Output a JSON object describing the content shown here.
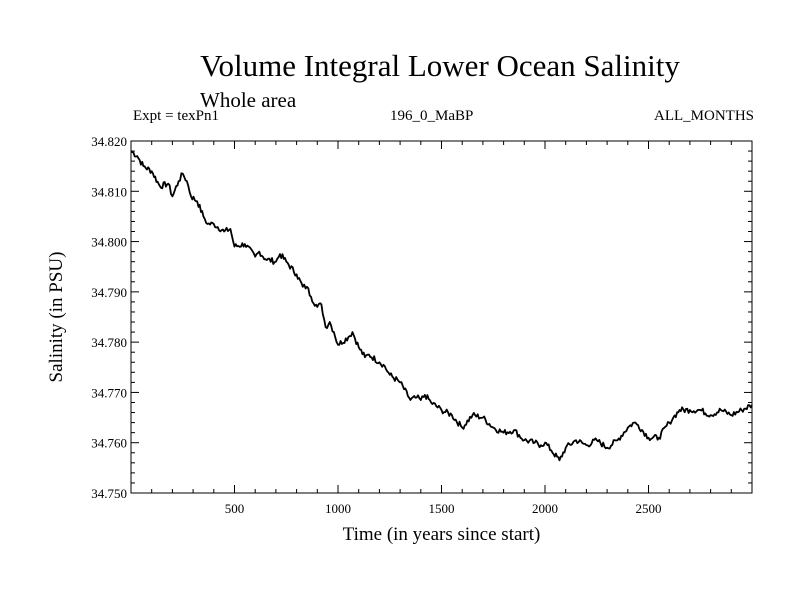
{
  "header": {
    "title": "Volume Integral Lower Ocean Salinity",
    "subtitle": "Whole area",
    "left": "Expt = texPn1",
    "center": "196_0_MaBP",
    "right": "ALL_MONTHS"
  },
  "chart_data": {
    "type": "line",
    "title": "Volume Integral Lower Ocean Salinity",
    "subtitle": "Whole area",
    "xlabel": "Time (in years since start)",
    "ylabel": "Salinity (in PSU)",
    "xlim": [
      0,
      3000
    ],
    "ylim": [
      34.75,
      34.82
    ],
    "xticks": [
      500,
      1000,
      1500,
      2000,
      2500
    ],
    "xtick_labels": [
      "500",
      "1000",
      "1500",
      "2000",
      "2500"
    ],
    "yticks": [
      34.75,
      34.76,
      34.77,
      34.78,
      34.79,
      34.8,
      34.81,
      34.82
    ],
    "ytick_labels": [
      "34.750",
      "34.760",
      "34.770",
      "34.780",
      "34.790",
      "34.800",
      "34.810",
      "34.820"
    ],
    "grid": false,
    "line_color": "#000000",
    "series": [
      {
        "x": [
          0,
          30,
          60,
          100,
          140,
          180,
          200,
          230,
          250,
          270,
          290,
          320,
          350,
          370,
          400,
          450,
          480,
          500,
          550,
          600,
          620,
          650,
          700,
          720,
          750,
          800,
          830,
          850,
          870,
          900,
          920,
          940,
          960,
          980,
          1000,
          1050,
          1070,
          1100,
          1130,
          1150,
          1200,
          1220,
          1250,
          1300,
          1350,
          1380,
          1400,
          1420,
          1450,
          1500,
          1550,
          1600,
          1650,
          1700,
          1750,
          1800,
          1850,
          1900,
          1950,
          1980,
          2000,
          2030,
          2070,
          2100,
          2150,
          2200,
          2250,
          2300,
          2350,
          2400,
          2430,
          2450,
          2500,
          2550,
          2600,
          2620,
          2650,
          2700,
          2750,
          2800,
          2850,
          2900,
          2950,
          3000
        ],
        "y": [
          34.818,
          34.817,
          34.815,
          34.814,
          34.811,
          34.8115,
          34.809,
          34.812,
          34.8135,
          34.812,
          34.809,
          34.808,
          34.805,
          34.8035,
          34.8035,
          34.802,
          34.8025,
          34.799,
          34.7995,
          34.797,
          34.798,
          34.7965,
          34.796,
          34.7975,
          34.796,
          34.7935,
          34.791,
          34.791,
          34.789,
          34.787,
          34.7875,
          34.783,
          34.784,
          34.782,
          34.7795,
          34.781,
          34.782,
          34.779,
          34.777,
          34.7775,
          34.776,
          34.7755,
          34.7735,
          34.772,
          34.7685,
          34.769,
          34.7685,
          34.7695,
          34.768,
          34.7665,
          34.7655,
          34.763,
          34.7655,
          34.765,
          34.763,
          34.762,
          34.7625,
          34.7605,
          34.76,
          34.7595,
          34.76,
          34.7585,
          34.7565,
          34.759,
          34.7605,
          34.7595,
          34.7605,
          34.759,
          34.7605,
          34.763,
          34.764,
          34.7635,
          34.761,
          34.761,
          34.764,
          34.765,
          34.7665,
          34.7665,
          34.7665,
          34.7655,
          34.7665,
          34.7655,
          34.7665,
          34.7675
        ]
      }
    ]
  }
}
